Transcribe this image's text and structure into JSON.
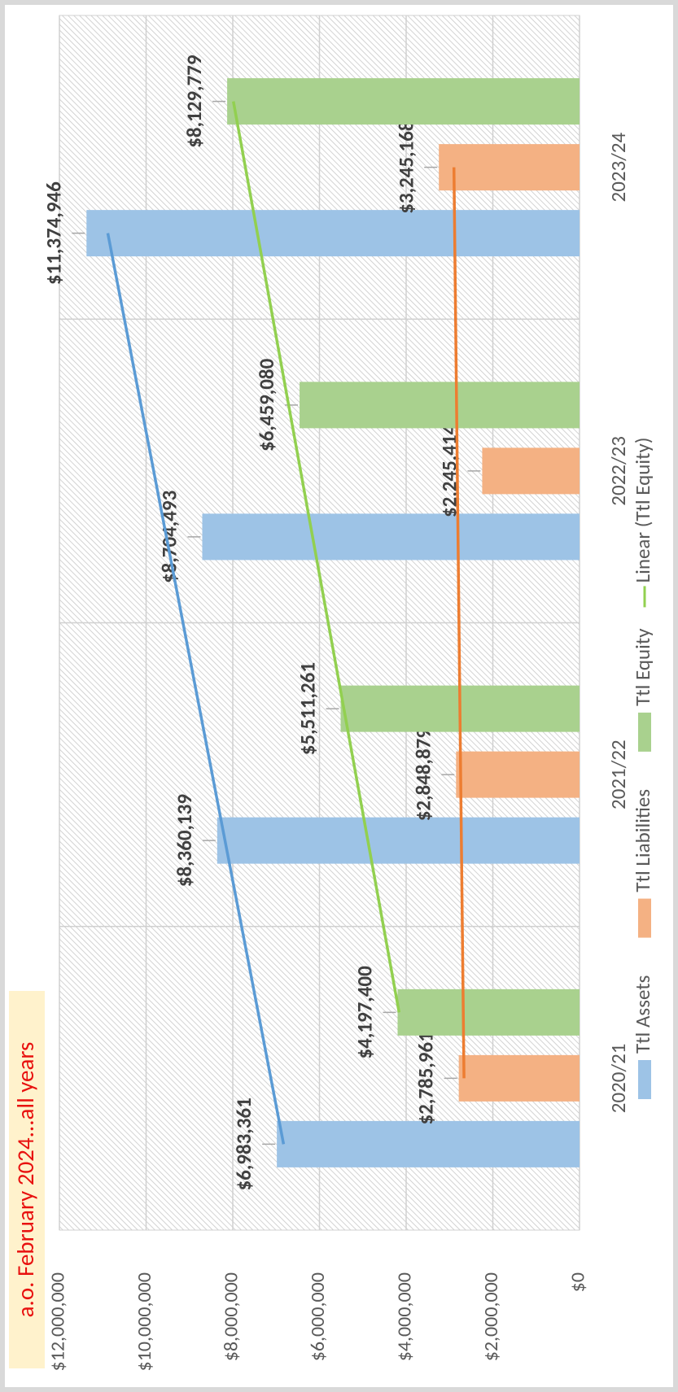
{
  "chart_data": {
    "type": "bar",
    "title": "a.o. February 2024...all years",
    "categories": [
      "2020/21",
      "2021/22",
      "2022/23",
      "2023/24"
    ],
    "series": [
      {
        "name": "Ttl Assets",
        "color": "#9dc3e6",
        "trend_color": "#5b9bd5",
        "values": [
          6983361,
          8360139,
          8704493,
          11374946
        ],
        "value_labels": [
          "$6,983,361",
          "$8,360,139",
          "$8,704,493",
          "$11,374,946"
        ]
      },
      {
        "name": "Ttl Liabilities",
        "color": "#f4b183",
        "trend_color": "#ed7d31",
        "values": [
          2785961,
          2848879,
          2245414,
          3245168
        ],
        "value_labels": [
          "$2,785,961",
          "$2,848,879",
          "$2,245,414",
          "$3,245,168"
        ]
      },
      {
        "name": "Ttl Equity",
        "color": "#a9d18e",
        "trend_color": "#92d050",
        "values": [
          4197400,
          5511261,
          6459080,
          8129779
        ],
        "value_labels": [
          "$4,197,400",
          "$5,511,261",
          "$6,459,080",
          "$8,129,779"
        ]
      }
    ],
    "trendline_label": "Linear (Ttl Equity)",
    "trendline_legend_series": 2,
    "ylim": [
      0,
      12000000
    ],
    "yticks": [
      {
        "value": 0,
        "label": "$0"
      },
      {
        "value": 2000000,
        "label": "$2,000,000"
      },
      {
        "value": 4000000,
        "label": "$4,000,000"
      },
      {
        "value": 6000000,
        "label": "$6,000,000"
      },
      {
        "value": 8000000,
        "label": "$8,000,000"
      },
      {
        "value": 10000000,
        "label": "$10,000,000"
      },
      {
        "value": 12000000,
        "label": "$12,000,000"
      }
    ],
    "grid": true,
    "legend": "bottom"
  }
}
